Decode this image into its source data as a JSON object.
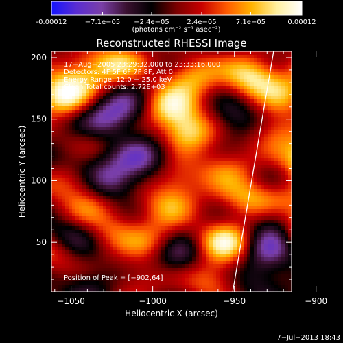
{
  "chart_data": {
    "type": "heatmap",
    "title": "Reconstructed RHESSI Image",
    "xlabel": "Heliocentric X (arcsec)",
    "ylabel": "Heliocentric Y (arcsec)",
    "xlim": [
      -1062,
      -915
    ],
    "ylim": [
      10,
      205
    ],
    "x_ticks": [
      -1050,
      -1000,
      -950,
      -900
    ],
    "x_tick_labels": [
      "−1050",
      "−1000",
      "−950",
      "−900"
    ],
    "y_ticks": [
      50,
      100,
      150,
      200
    ],
    "y_tick_labels": [
      "50",
      "100",
      "150",
      "200"
    ],
    "colorbar": {
      "range": [
        -0.00012,
        0.00012
      ],
      "ticks": [
        -0.00012,
        -7.1e-05,
        -2.4e-05,
        2.4e-05,
        7.1e-05,
        0.00012
      ],
      "tick_labels": [
        "-0.00012",
        "−7.1e−05",
        "−2.4e−05",
        "2.4e−05",
        "7.1e−05",
        "0.00012"
      ],
      "unit_label": "(photons cm⁻² s⁻¹ asec⁻²)",
      "colors": [
        "#1414ff",
        "#5a2dd2",
        "#7a3fa8",
        "#3a1030",
        "#000000",
        "#7a0000",
        "#c80000",
        "#ff5a00",
        "#ffb400",
        "#fff0a0",
        "#ffffff"
      ]
    },
    "annotations": [
      "17−Aug−2005 23:29:32.000 to 23:33:16.000",
      "Detectors: 4F 5F 6F 7F 8F, Att 0",
      "Energy Range: 12.0 − 25.0 keV",
      "Clean     Total counts: 2.72E+03"
    ],
    "peak_label": "Position of Peak = [−902,64]",
    "peak": [
      -902,
      64
    ],
    "limb_line": [
      [
        -951,
        10
      ],
      [
        -926,
        205
      ]
    ],
    "sources": [
      {
        "x": -1055,
        "y": 170,
        "v": 1.0
      },
      {
        "x": -1040,
        "y": 190,
        "v": 0.5
      },
      {
        "x": -1020,
        "y": 195,
        "v": 0.6
      },
      {
        "x": -990,
        "y": 160,
        "v": 0.8
      },
      {
        "x": -975,
        "y": 185,
        "v": 0.6
      },
      {
        "x": -978,
        "y": 140,
        "v": 0.8
      },
      {
        "x": -940,
        "y": 185,
        "v": 0.8
      },
      {
        "x": -925,
        "y": 140,
        "v": 0.5
      },
      {
        "x": -900,
        "y": 190,
        "v": 0.5
      },
      {
        "x": -920,
        "y": 170,
        "v": 0.5
      },
      {
        "x": -1040,
        "y": 130,
        "v": 0.3
      },
      {
        "x": -955,
        "y": 110,
        "v": 0.5
      },
      {
        "x": -900,
        "y": 120,
        "v": 0.8
      },
      {
        "x": -910,
        "y": 110,
        "v": 0.6
      },
      {
        "x": -1050,
        "y": 100,
        "v": 0.5
      },
      {
        "x": -1040,
        "y": 80,
        "v": 0.4
      },
      {
        "x": -990,
        "y": 80,
        "v": 0.5
      },
      {
        "x": -985,
        "y": 100,
        "v": 0.4
      },
      {
        "x": -940,
        "y": 85,
        "v": 0.6
      },
      {
        "x": -955,
        "y": 50,
        "v": 0.9
      },
      {
        "x": -902,
        "y": 64,
        "v": 1.0
      },
      {
        "x": -920,
        "y": 85,
        "v": 0.5
      },
      {
        "x": -1000,
        "y": 50,
        "v": 0.5
      },
      {
        "x": -1010,
        "y": 20,
        "v": 0.3
      },
      {
        "x": -965,
        "y": 20,
        "v": 0.5
      },
      {
        "x": -1025,
        "y": 60,
        "v": 0.4
      },
      {
        "x": -1060,
        "y": 40,
        "v": 0.4
      },
      {
        "x": -1030,
        "y": 150,
        "v": -0.5
      },
      {
        "x": -1005,
        "y": 120,
        "v": -0.5
      },
      {
        "x": -1025,
        "y": 100,
        "v": -0.6
      },
      {
        "x": -1050,
        "y": 55,
        "v": -0.4
      },
      {
        "x": -985,
        "y": 40,
        "v": -0.5
      },
      {
        "x": -1015,
        "y": 160,
        "v": -0.4
      },
      {
        "x": -930,
        "y": 45,
        "v": -0.5
      },
      {
        "x": -925,
        "y": 70,
        "v": -0.5
      },
      {
        "x": -950,
        "y": 150,
        "v": -0.4
      },
      {
        "x": -920,
        "y": 105,
        "v": -0.4
      },
      {
        "x": -1045,
        "y": 115,
        "v": -0.4
      },
      {
        "x": -935,
        "y": 20,
        "v": -0.3
      },
      {
        "x": -1040,
        "y": 15,
        "v": -0.3
      }
    ]
  },
  "footer": {
    "timestamp": "7−Jul−2013 18:43"
  }
}
